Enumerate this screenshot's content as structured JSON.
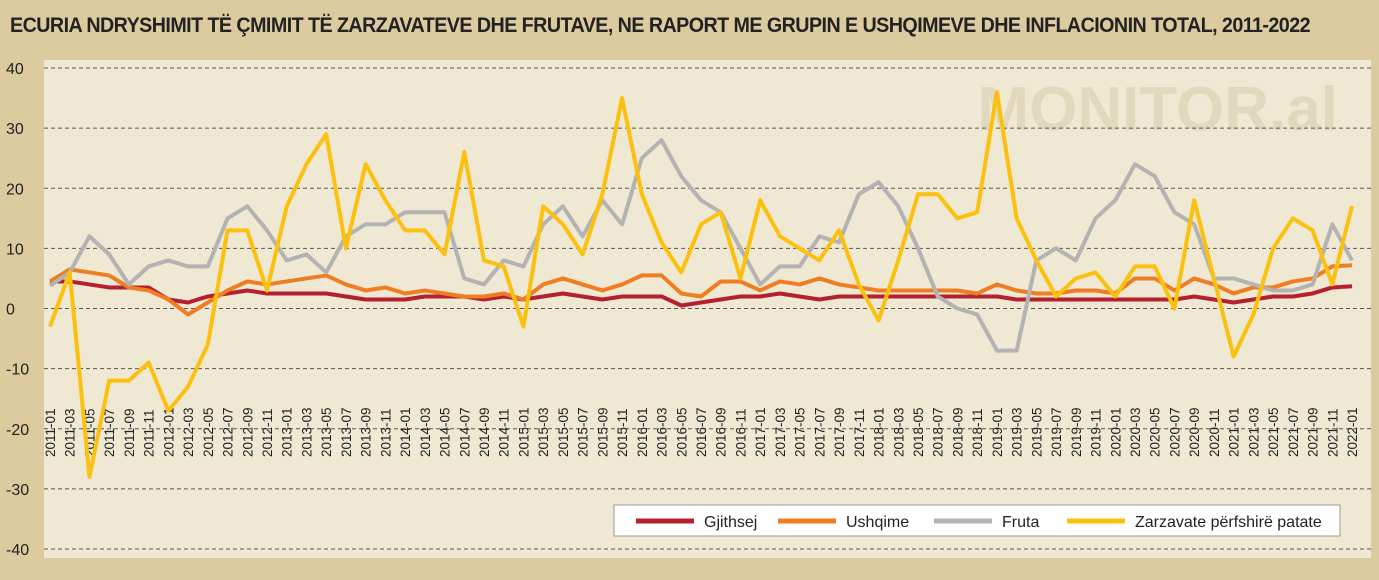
{
  "chart_data": {
    "type": "line",
    "title": "ECURIA NDRYSHIMIT TË ÇMIMIT TË ZARZAVATEVE DHE FRUTAVE, NE RAPORT ME GRUPIN E USHQIMEVE DHE INFLACIONIN TOTAL, 2011-2022",
    "watermark": "MONITOR.al",
    "categories": [
      "2011-01",
      "2011-03",
      "2011-05",
      "2011-07",
      "2011-09",
      "2011-11",
      "2012-01",
      "2012-03",
      "2012-05",
      "2012-07",
      "2012-09",
      "2012-11",
      "2013-01",
      "2013-03",
      "2013-05",
      "2013-07",
      "2013-09",
      "2013-11",
      "2014-01",
      "2014-03",
      "2014-05",
      "2014-07",
      "2014-09",
      "2014-11",
      "2015-01",
      "2015-03",
      "2015-05",
      "2015-07",
      "2015-09",
      "2015-11",
      "2016-01",
      "2016-03",
      "2016-05",
      "2016-07",
      "2016-09",
      "2016-11",
      "2017-01",
      "2017-03",
      "2017-05",
      "2017-07",
      "2017-09",
      "2017-11",
      "2018-01",
      "2018-03",
      "2018-05",
      "2018-07",
      "2018-09",
      "2018-11",
      "2019-01",
      "2019-03",
      "2019-05",
      "2019-07",
      "2019-09",
      "2019-11",
      "2020-01",
      "2020-03",
      "2020-05",
      "2020-07",
      "2020-09",
      "2020-11",
      "2021-01",
      "2021-03",
      "2021-05",
      "2021-07",
      "2021-09",
      "2021-11",
      "2022-01"
    ],
    "series": [
      {
        "name": "Gjithsej",
        "color": "#b5202e",
        "values": [
          4.5,
          4.5,
          4,
          3.5,
          3.5,
          3.5,
          1.5,
          1,
          2,
          2.5,
          3,
          2.5,
          2.5,
          2.5,
          2.5,
          2,
          1.5,
          1.5,
          1.5,
          2,
          2,
          2,
          1.5,
          2,
          1.5,
          2,
          2.5,
          2,
          1.5,
          2,
          2,
          2,
          0.5,
          1,
          1.5,
          2,
          2,
          2.5,
          2,
          1.5,
          2,
          2,
          2,
          2,
          2,
          2,
          2,
          2,
          2,
          1.5,
          1.5,
          1.5,
          1.5,
          1.5,
          1.5,
          1.5,
          1.5,
          1.5,
          2,
          1.5,
          1,
          1.5,
          2,
          2,
          2.5,
          3.5,
          3.7
        ]
      },
      {
        "name": "Ushqime",
        "color": "#ef7d22",
        "values": [
          4.5,
          6.5,
          6,
          5.5,
          3.5,
          3,
          1.5,
          -1,
          1,
          3,
          4.5,
          4,
          4.5,
          5,
          5.5,
          4,
          3,
          3.5,
          2.5,
          3,
          2.5,
          2,
          2,
          2.5,
          1.5,
          4,
          5,
          4,
          3,
          4,
          5.5,
          5.5,
          2.5,
          2,
          4.5,
          4.5,
          3,
          4.5,
          4,
          5,
          4,
          3.5,
          3,
          3,
          3,
          3,
          3,
          2.5,
          4,
          3,
          2.5,
          2.5,
          3,
          3,
          2.5,
          5,
          5,
          3,
          5,
          4,
          2.5,
          3.5,
          3.5,
          4.5,
          5,
          7,
          7.2
        ]
      },
      {
        "name": "Fruta",
        "color": "#b3b3b3",
        "values": [
          3.8,
          6,
          12,
          9,
          4,
          7,
          8,
          7,
          7,
          15,
          17,
          13,
          8,
          9,
          6,
          12,
          14,
          14,
          16,
          16,
          16,
          5,
          4,
          8,
          7,
          14,
          17,
          12,
          18,
          14,
          25,
          28,
          22,
          18,
          16,
          10,
          4,
          7,
          7,
          12,
          11,
          19,
          21,
          17,
          10,
          2,
          0,
          -1,
          -7,
          -7,
          8,
          10,
          8,
          15,
          18,
          24,
          22,
          16,
          14,
          5,
          5,
          4,
          3,
          3,
          4,
          14,
          8
        ]
      },
      {
        "name": "Zarzavate përfshirë patate",
        "color": "#fcc10f",
        "values": [
          -3,
          6,
          -28,
          -12,
          -12,
          -9,
          -17,
          -13,
          -6,
          13,
          13,
          3,
          17,
          24,
          29,
          10,
          24,
          18,
          13,
          13,
          9,
          26,
          8,
          7,
          -3,
          17,
          14,
          9,
          19,
          35,
          19,
          11,
          6,
          14,
          16,
          5,
          18,
          12,
          10,
          8,
          13,
          4,
          -2,
          8,
          19,
          19,
          15,
          16,
          36,
          15,
          8,
          2,
          5,
          6,
          2,
          7,
          7,
          0,
          18,
          5,
          -8,
          -1,
          10,
          15,
          13,
          4,
          17
        ]
      }
    ],
    "ylim": [
      -40,
      40
    ],
    "yticks": [
      -40,
      -30,
      -20,
      -10,
      0,
      10,
      20,
      30,
      40
    ],
    "grid": true,
    "legend": "bottom-right"
  }
}
